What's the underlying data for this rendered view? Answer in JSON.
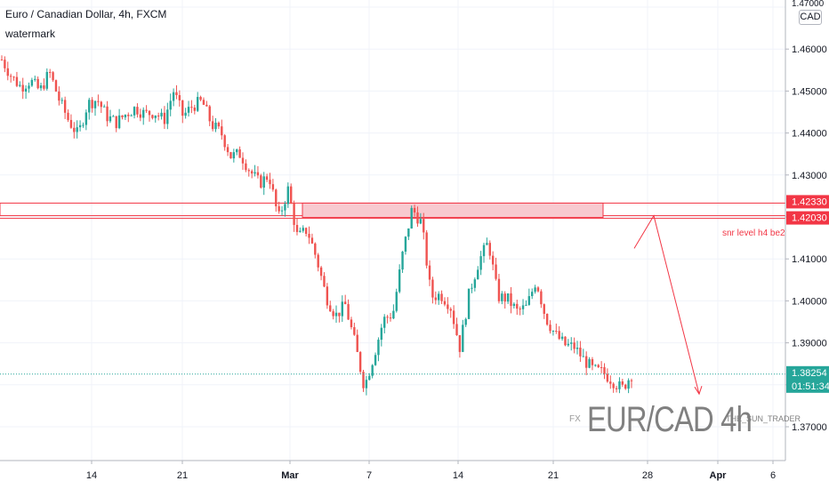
{
  "header": {
    "title": "Euro / Canadian Dollar, 4h, FXCM",
    "subtitle": "watermark",
    "currency": "CAD"
  },
  "watermark": {
    "prefix": "FX",
    "pair": "EUR/CAD 4h",
    "author": "THE_SUN_TRADER"
  },
  "colors": {
    "up": "#26a69a",
    "down": "#ef5350",
    "zone_fill": "#f8c9cf",
    "zone_line": "#f23645",
    "price_line": "#26a69a",
    "grid": "#f0f3fa",
    "axis_text": "#131722"
  },
  "chart_data": {
    "type": "candlestick",
    "symbol": "EURCAD",
    "timeframe": "4h",
    "ylim": [
      1.3675,
      1.4705
    ],
    "y_ticks": [
      "1.47000",
      "1.46000",
      "1.45000",
      "1.44000",
      "1.43000",
      "1.42000",
      "1.41000",
      "1.40000",
      "1.39000",
      "1.38000",
      "1.37000"
    ],
    "x_ticks": [
      "14",
      "21",
      "Mar",
      "7",
      "14",
      "21",
      "28",
      "Apr",
      "6"
    ],
    "price_labels": [
      {
        "label": "1.42330",
        "value": 1.4233,
        "color": "#f23645"
      },
      {
        "label": "1.42030",
        "value": 1.4203,
        "color": "#f23645"
      },
      {
        "label": "1.38254",
        "value": 1.38254,
        "color": "#26a69a",
        "countdown": "01:51:34"
      }
    ],
    "zone": {
      "top": 1.4233,
      "bottom": 1.4203,
      "label": "snr level h4 be2",
      "x_start": "Mar",
      "x_end": "24"
    },
    "projection": [
      "1.4125",
      "1.4203",
      "1.3778"
    ],
    "close_path": [
      1.4575,
      1.4535,
      1.451,
      1.4525,
      1.45,
      1.4545,
      1.448,
      1.443,
      1.4395,
      1.447,
      1.448,
      1.444,
      1.4425,
      1.4445,
      1.446,
      1.4445,
      1.445,
      1.443,
      1.45,
      1.444,
      1.4465,
      1.4475,
      1.442,
      1.44,
      1.4345,
      1.435,
      1.431,
      1.428,
      1.43,
      1.4195,
      1.4265,
      1.415,
      1.417,
      1.41,
      1.401,
      1.3965,
      1.399,
      1.39,
      1.3795,
      1.387,
      1.3955,
      1.397,
      1.411,
      1.422,
      1.4185,
      1.401,
      1.4015,
      1.399,
      1.389,
      1.402,
      1.4095,
      1.414,
      1.401,
      1.4005,
      1.3975,
      1.3985,
      1.405,
      1.396,
      1.392,
      1.3895,
      1.389,
      1.386,
      1.3835,
      1.383,
      1.381,
      1.379,
      1.3825
    ]
  }
}
